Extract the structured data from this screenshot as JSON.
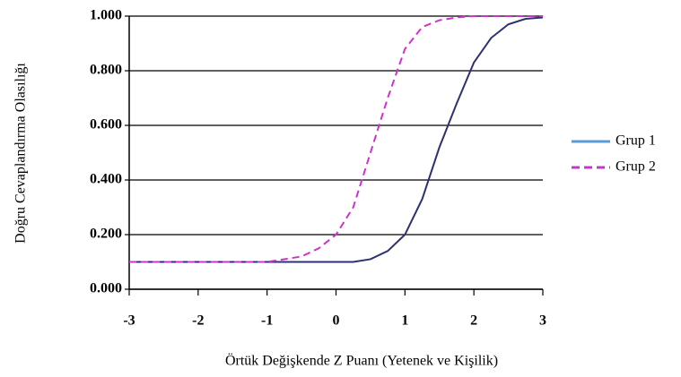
{
  "chart_data": {
    "type": "line",
    "xlabel": "Örtük Değişkende Z Puanı (Yetenek ve Kişilik)",
    "ylabel": "Doğru Cevaplandırma Olasılığı",
    "x": [
      -3,
      -2.75,
      -2.5,
      -2.25,
      -2,
      -1.75,
      -1.5,
      -1.25,
      -1,
      -0.75,
      -0.5,
      -0.25,
      0,
      0.25,
      0.5,
      0.75,
      1,
      1.25,
      1.5,
      1.75,
      2,
      2.25,
      2.5,
      2.75,
      3
    ],
    "series": [
      {
        "name": "Grup 1",
        "color": "#2e3170",
        "legend_color": "#5b9bd5",
        "dash": false,
        "values": [
          0.1,
          0.1,
          0.1,
          0.1,
          0.1,
          0.1,
          0.1,
          0.1,
          0.1,
          0.1,
          0.1,
          0.1,
          0.1,
          0.1,
          0.11,
          0.14,
          0.2,
          0.33,
          0.52,
          0.68,
          0.83,
          0.92,
          0.97,
          0.99,
          0.995
        ]
      },
      {
        "name": "Grup 2",
        "color": "#cc33cc",
        "legend_color": "#cc33cc",
        "dash": true,
        "values": [
          0.1,
          0.1,
          0.1,
          0.1,
          0.1,
          0.1,
          0.1,
          0.1,
          0.1,
          0.11,
          0.12,
          0.15,
          0.2,
          0.3,
          0.5,
          0.7,
          0.88,
          0.96,
          0.985,
          0.995,
          1.0,
          1.0,
          1.0,
          1.0,
          1.0
        ]
      }
    ],
    "xlim": [
      -3,
      3
    ],
    "xticks": [
      -3,
      -2,
      -1,
      0,
      1,
      2,
      3
    ],
    "ylim": [
      0,
      1
    ],
    "yticks": [
      {
        "value": 0,
        "label": "0.000"
      },
      {
        "value": 0.2,
        "label": "0.200"
      },
      {
        "value": 0.4,
        "label": "0.400"
      },
      {
        "value": 0.6,
        "label": "0.600"
      },
      {
        "value": 0.8,
        "label": "0.800"
      },
      {
        "value": 1,
        "label": "1.000"
      }
    ],
    "grid": true,
    "legend": "right"
  }
}
